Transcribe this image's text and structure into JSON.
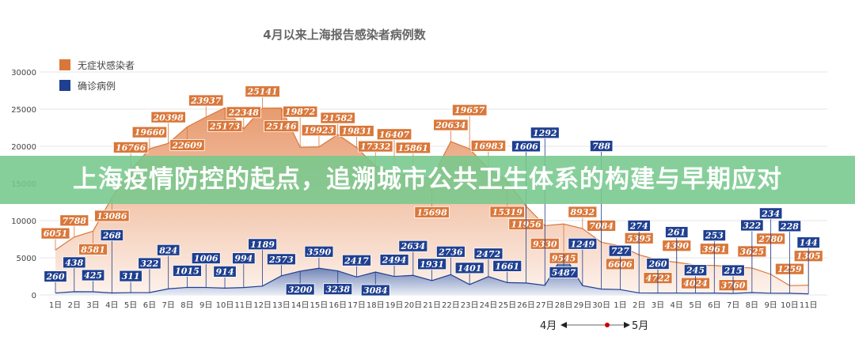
{
  "chart_data": {
    "type": "area",
    "title": "4月以来上海报告感染者病例数",
    "categories": [
      "1日",
      "2日",
      "3日",
      "4日",
      "5日",
      "6日",
      "7日",
      "8日",
      "9日",
      "10日",
      "11日",
      "12日",
      "13日",
      "14日",
      "15日",
      "16日",
      "17日",
      "18日",
      "19日",
      "20日",
      "21日",
      "22日",
      "23日",
      "24日",
      "25日",
      "26日",
      "27日",
      "28日",
      "29日",
      "30日",
      "1日",
      "2日",
      "3日",
      "4日",
      "5日",
      "6日",
      "7日",
      "8日",
      "9日",
      "10日",
      "11日"
    ],
    "series": [
      {
        "name": "无症状感染者",
        "color": "#d9773a",
        "values": [
          6051,
          7788,
          8581,
          13086,
          16766,
          19660,
          20398,
          22609,
          23937,
          25173,
          22348,
          25141,
          25146,
          19872,
          19923,
          21582,
          19831,
          17332,
          16407,
          15861,
          15698,
          20634,
          19657,
          16983,
          15319,
          11956,
          9330,
          9545,
          8932,
          7084,
          6606,
          5395,
          4722,
          4390,
          4024,
          3961,
          3760,
          3625,
          2780,
          1259,
          1305
        ]
      },
      {
        "name": "确诊病例",
        "color": "#1f3f8f",
        "values": [
          260,
          438,
          425,
          268,
          311,
          322,
          824,
          1015,
          1006,
          914,
          994,
          1189,
          2573,
          3200,
          3590,
          3238,
          2417,
          3084,
          2494,
          2634,
          1931,
          2736,
          1401,
          2472,
          1661,
          1606,
          1292,
          5487,
          1249,
          788,
          727,
          274,
          260,
          261,
          245,
          253,
          215,
          322,
          234,
          228,
          144
        ]
      }
    ],
    "yticks": [
      0,
      5000,
      10000,
      15000,
      20000,
      25000,
      30000
    ],
    "ylim": [
      0,
      30000
    ],
    "grid": true,
    "legend": "top-left",
    "month_axis": {
      "from": "4月",
      "to": "5月"
    }
  },
  "banner": {
    "text": "上海疫情防控的起点，追溯城市公共卫生体系的构建与早期应对"
  }
}
